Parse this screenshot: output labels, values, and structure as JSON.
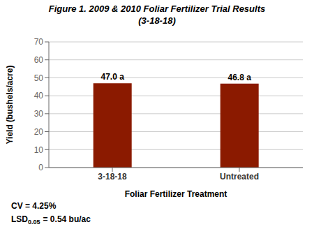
{
  "chart_data": {
    "type": "bar",
    "title": "Figure 1. 2009 & 2010 Foliar Fertilizer Trial Results",
    "subtitle": "(3-18-18)",
    "categories": [
      "3-18-18",
      "Untreated"
    ],
    "values": [
      47.0,
      46.8
    ],
    "value_labels": [
      "47.0 a",
      "46.8 a"
    ],
    "data_labels": true,
    "color": "#8B1A00",
    "ylabel": "Yield (bushels/acre)",
    "xlabel": "Foliar Fertilizer Treatment",
    "ylim": [
      0,
      70
    ],
    "yticks": [
      0,
      10,
      20,
      30,
      40,
      50,
      60,
      70
    ],
    "grid": true,
    "annotations": [
      {
        "text": "CV = 4.25%"
      },
      {
        "text": "LSD",
        "subscript": "0.05",
        "suffix": "= 0.54 bu/ac"
      }
    ]
  }
}
